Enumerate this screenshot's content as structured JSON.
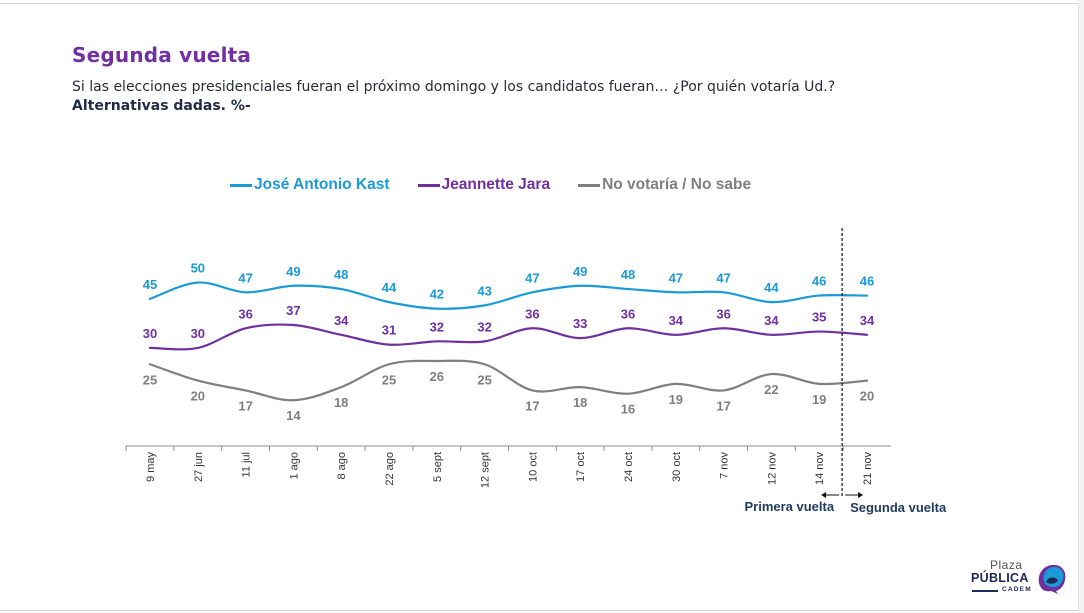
{
  "slide": {
    "title": "Segunda vuelta",
    "subtitle": "Si las elecciones presidenciales fueran el próximo domingo y los candidatos fueran… ¿Por quién votaría Ud.?",
    "subtitle_bold": "Alternativas dadas. %-"
  },
  "colors": {
    "title": "#7030a0",
    "kast": "#1a9ad6",
    "jara": "#7030a0",
    "no_vota": "#7f7f7f",
    "annotation": "#1f3a5f"
  },
  "logo": {
    "line1": "Plaza",
    "line2": "PÚBLICA",
    "line3": "CADEM"
  },
  "chart_data": {
    "type": "line",
    "title": "Segunda vuelta",
    "xlabel": "",
    "ylabel": "%",
    "ylim": [
      0,
      55
    ],
    "grid": false,
    "legend_position": "top-center",
    "categories": [
      "9 may",
      "27 jun",
      "11 jul",
      "1 ago",
      "8 ago",
      "22 ago",
      "5 sept",
      "12 sept",
      "10 oct",
      "17 oct",
      "24 oct",
      "30 oct",
      "7 nov",
      "12 nov",
      "14 nov",
      "21 nov"
    ],
    "series": [
      {
        "name": "José Antonio Kast",
        "key": "kast",
        "label_position": "above",
        "values": [
          45,
          50,
          47,
          49,
          48,
          44,
          42,
          43,
          47,
          49,
          48,
          47,
          47,
          44,
          46,
          46
        ]
      },
      {
        "name": "Jeannette Jara",
        "key": "jara",
        "label_position": "above",
        "values": [
          30,
          30,
          36,
          37,
          34,
          31,
          32,
          32,
          36,
          33,
          36,
          34,
          36,
          34,
          35,
          34
        ]
      },
      {
        "name": "No votaría / No sabe",
        "key": "no_vota",
        "label_position": "below",
        "values": [
          25,
          20,
          17,
          14,
          18,
          25,
          26,
          25,
          17,
          18,
          16,
          19,
          17,
          22,
          19,
          20
        ]
      }
    ],
    "annotations": {
      "divider_between": [
        "14 nov",
        "21 nov"
      ],
      "left_label": "Primera vuelta",
      "right_label": "Segunda vuelta"
    }
  }
}
